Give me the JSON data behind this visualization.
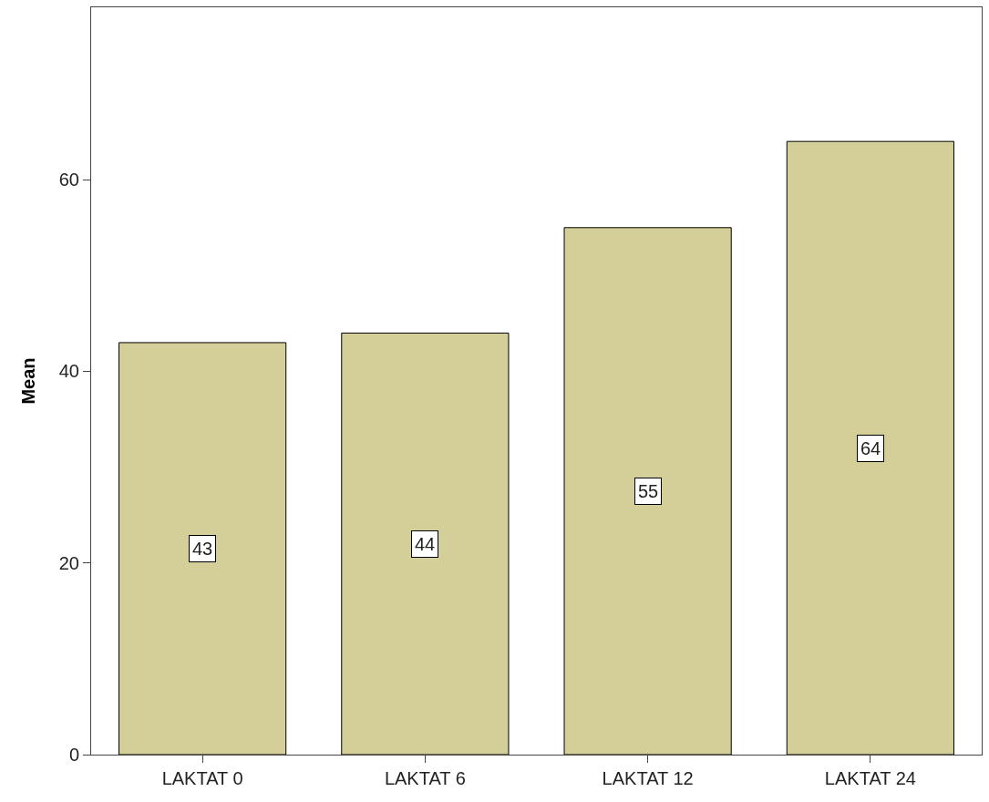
{
  "chart_data": {
    "type": "bar",
    "ylabel": "Mean",
    "categories": [
      "LAKTAT 0",
      "LAKTAT 6",
      "LAKTAT 12",
      "LAKTAT 24"
    ],
    "values": [
      43,
      44,
      55,
      64
    ],
    "color": "#d4ce99",
    "ylim": [
      0,
      78
    ],
    "yticks": [
      0,
      20,
      40,
      60
    ],
    "grid": false,
    "legend": false,
    "data_labels": true
  }
}
